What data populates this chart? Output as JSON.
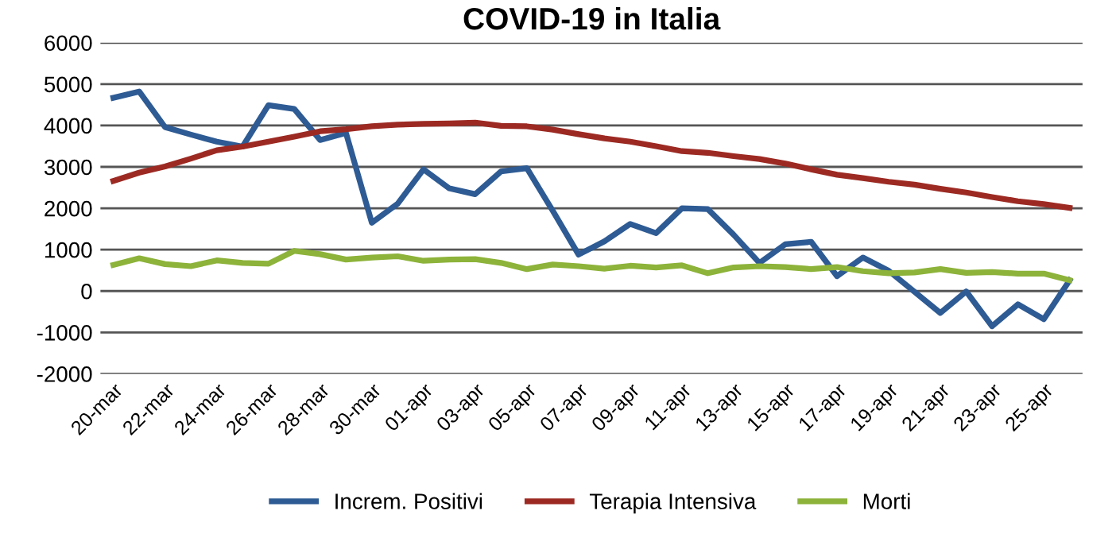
{
  "chart_data": {
    "type": "line",
    "title": "COVID-19 in Italia",
    "categories": [
      "20-mar",
      null,
      "22-mar",
      null,
      "24-mar",
      null,
      "26-mar",
      null,
      "28-mar",
      null,
      "30-mar",
      null,
      "01-apr",
      null,
      "03-apr",
      null,
      "05-apr",
      null,
      "07-apr",
      null,
      "09-apr",
      null,
      "11-apr",
      null,
      "13-apr",
      null,
      "15-apr",
      null,
      "17-apr",
      null,
      "19-apr",
      null,
      "21-apr",
      null,
      "23-apr",
      null,
      "25-apr",
      null
    ],
    "series": [
      {
        "name": "Increm. Positivi",
        "color": "#2e5b94",
        "values": [
          4670,
          4820,
          3960,
          3780,
          3610,
          3490,
          4490,
          4400,
          3650,
          3820,
          1650,
          2110,
          2940,
          2480,
          2340,
          2890,
          2970,
          1940,
          880,
          1200,
          1620,
          1400,
          2000,
          1980,
          1360,
          680,
          1130,
          1190,
          360,
          810,
          490,
          -20,
          -530,
          -10,
          -850,
          -320,
          -680,
          260
        ]
      },
      {
        "name": "Terapia Intensiva",
        "color": "#9c2a23",
        "values": [
          2660,
          2860,
          3010,
          3200,
          3400,
          3490,
          3610,
          3730,
          3860,
          3910,
          3980,
          4020,
          4040,
          4050,
          4070,
          3990,
          3980,
          3900,
          3790,
          3690,
          3610,
          3500,
          3380,
          3340,
          3260,
          3190,
          3080,
          2940,
          2810,
          2730,
          2640,
          2570,
          2470,
          2380,
          2270,
          2170,
          2100,
          2010
        ]
      },
      {
        "name": "Morti",
        "color": "#8db33a",
        "values": [
          630,
          790,
          650,
          600,
          740,
          680,
          660,
          970,
          890,
          760,
          810,
          840,
          730,
          760,
          770,
          680,
          530,
          640,
          600,
          540,
          610,
          570,
          620,
          430,
          570,
          600,
          580,
          530,
          580,
          480,
          430,
          450,
          530,
          440,
          460,
          420,
          420,
          260
        ]
      }
    ],
    "ylim": [
      -2000,
      6000
    ],
    "yticks": [
      -2000,
      -1000,
      0,
      1000,
      2000,
      3000,
      4000,
      5000,
      6000
    ],
    "grid": "y",
    "legend": "bottom",
    "marker": "none",
    "line_style": "solid"
  }
}
